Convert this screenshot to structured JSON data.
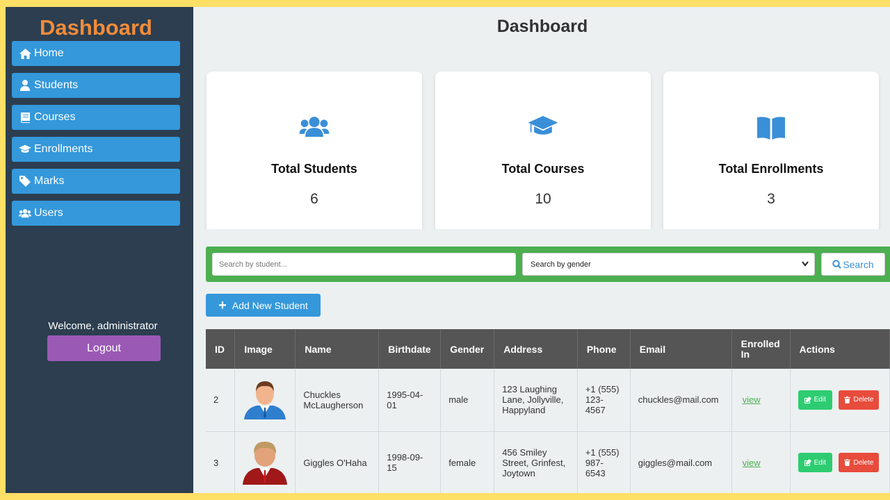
{
  "sidebar": {
    "brand": "Dashboard",
    "items": [
      {
        "label": "Home",
        "icon": "home-icon"
      },
      {
        "label": "Students",
        "icon": "user-icon"
      },
      {
        "label": "Courses",
        "icon": "book-icon"
      },
      {
        "label": "Enrollments",
        "icon": "graduation-cap-icon"
      },
      {
        "label": "Marks",
        "icon": "tag-icon"
      },
      {
        "label": "Users",
        "icon": "users-icon"
      }
    ],
    "welcome": "Welcome, administrator",
    "logout_label": "Logout"
  },
  "main": {
    "title": "Dashboard",
    "cards": [
      {
        "title": "Total Students",
        "value": "6",
        "icon": "users-icon"
      },
      {
        "title": "Total Courses",
        "value": "10",
        "icon": "graduation-cap-icon"
      },
      {
        "title": "Total Enrollments",
        "value": "3",
        "icon": "open-book-icon"
      }
    ],
    "search": {
      "placeholder": "Search by student...",
      "gender_selected": "Search by gender",
      "button_label": "Search"
    },
    "add_label": "Add New Student",
    "table": {
      "headers": [
        "ID",
        "Image",
        "Name",
        "Birthdate",
        "Gender",
        "Address",
        "Phone",
        "Email",
        "Enrolled In",
        "Actions"
      ],
      "rows": [
        {
          "id": "2",
          "name": "Chuckles McLaugherson",
          "birthdate": "1995-04-01",
          "gender": "male",
          "address": "123 Laughing Lane, Jollyville, Happyland",
          "phone": "+1 (555) 123-4567",
          "email": "chuckles@mail.com",
          "enrolled": "view",
          "edit": "Edit",
          "delete": "Delete"
        },
        {
          "id": "3",
          "name": "Giggles O'Haha",
          "birthdate": "1998-09-15",
          "gender": "female",
          "address": "456 Smiley Street, Grinfest, Joytown",
          "phone": "+1 (555) 987-6543",
          "email": "giggles@mail.com",
          "enrolled": "view",
          "edit": "Edit",
          "delete": "Delete"
        }
      ]
    }
  },
  "colors": {
    "sidebar_bg": "#2c3e50",
    "brand": "#f28c3a",
    "nav_button": "#3498db",
    "logout": "#9b59b6",
    "search_bar": "#4caf50",
    "edit": "#2ecc71",
    "delete": "#e74c3c",
    "table_header": "#555555"
  }
}
